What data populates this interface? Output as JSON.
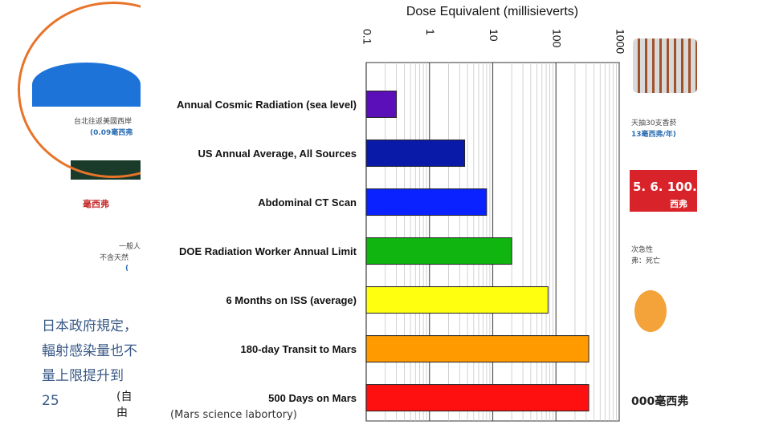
{
  "background": {
    "left_texts": [
      "台北往返美國西岸",
      "(0.09毫西弗",
      "毫西弗",
      "一般人",
      "不含天然",
      "(",
      "日本政府規定，",
      "輻射感染量也不",
      "量上限提升到25",
      "(自由"
    ],
    "right_texts": [
      "天抽30支香菸",
      "13毫西弗/年)",
      "5. 6. 100.",
      "西弗",
      "次急性",
      "弗：死亡",
      "000毫西弗"
    ],
    "caption": "(Mars science labortory)"
  },
  "chart_data": {
    "type": "bar",
    "orientation": "horizontal",
    "title": "Dose Equivalent (millisieverts)",
    "xscale": "log",
    "xlim": [
      0.1,
      1000
    ],
    "xticks": [
      "0.1",
      "1",
      "10",
      "100",
      "1000"
    ],
    "grid": true,
    "categories": [
      "Annual Cosmic Radiation (sea level)",
      "US Annual Average, All Sources",
      "Abdominal CT Scan",
      "DOE Radiation Worker Annual Limit",
      "6 Months on ISS (average)",
      "180-day Transit to Mars",
      "500 Days on Mars"
    ],
    "values": [
      0.3,
      3.6,
      8,
      20,
      75,
      330,
      330
    ],
    "colors": [
      "#5b0fb8",
      "#0a1aa8",
      "#0a22ff",
      "#10b510",
      "#ffff10",
      "#ff9a00",
      "#ff1010"
    ]
  }
}
